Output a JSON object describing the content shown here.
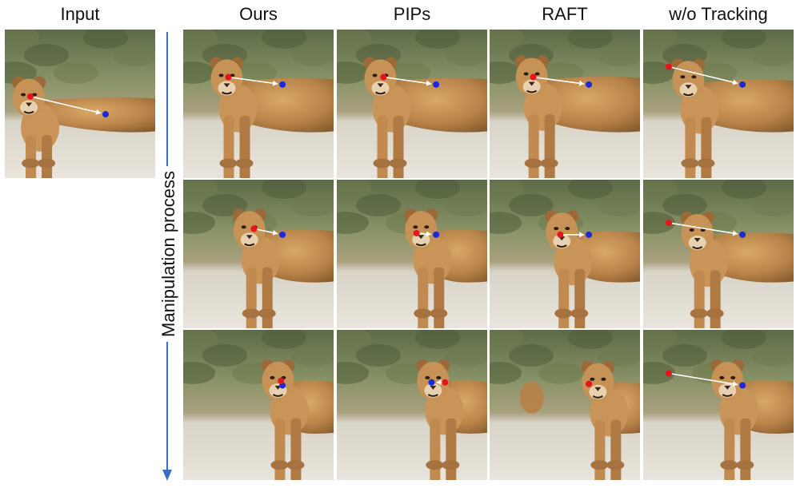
{
  "columns": [
    "Input",
    "Ours",
    "PIPs",
    "RAFT",
    "w/o Tracking"
  ],
  "axis_label": "Manipulation process",
  "colors": {
    "handle_point": "#e8141c",
    "target_point": "#1a2ad8",
    "drag_arrow": "#ffffff",
    "process_arrow": "#3a6fc4"
  },
  "panels": [
    {
      "row": 0,
      "col": 0,
      "method": "Input",
      "step": 0,
      "head": [
        0.16,
        0.46
      ],
      "handle": [
        0.17,
        0.45
      ],
      "target": [
        0.67,
        0.57
      ]
    },
    {
      "row": 0,
      "col": 1,
      "method": "Ours",
      "step": 1,
      "head": [
        0.29,
        0.33
      ],
      "handle": [
        0.3,
        0.32
      ],
      "target": [
        0.66,
        0.37
      ]
    },
    {
      "row": 0,
      "col": 2,
      "method": "PIPs",
      "step": 1,
      "head": [
        0.29,
        0.33
      ],
      "handle": [
        0.31,
        0.32
      ],
      "target": [
        0.66,
        0.37
      ]
    },
    {
      "row": 0,
      "col": 3,
      "method": "RAFT",
      "step": 1,
      "head": [
        0.28,
        0.32
      ],
      "handle": [
        0.29,
        0.32
      ],
      "target": [
        0.66,
        0.37
      ]
    },
    {
      "row": 0,
      "col": 4,
      "method": "w/o Tracking",
      "step": 1,
      "head": [
        0.3,
        0.34
      ],
      "handle": [
        0.17,
        0.25
      ],
      "target": [
        0.66,
        0.37
      ]
    },
    {
      "row": 1,
      "col": 1,
      "method": "Ours",
      "step": 2,
      "head": [
        0.44,
        0.34
      ],
      "handle": [
        0.47,
        0.33
      ],
      "target": [
        0.66,
        0.37
      ]
    },
    {
      "row": 1,
      "col": 2,
      "method": "PIPs",
      "step": 2,
      "head": [
        0.56,
        0.34
      ],
      "handle": [
        0.53,
        0.36
      ],
      "target": [
        0.66,
        0.37
      ]
    },
    {
      "row": 1,
      "col": 3,
      "method": "RAFT",
      "step": 2,
      "head": [
        0.48,
        0.35
      ],
      "handle": [
        0.47,
        0.37
      ],
      "target": [
        0.66,
        0.37
      ]
    },
    {
      "row": 1,
      "col": 4,
      "method": "w/o Tracking",
      "step": 2,
      "head": [
        0.36,
        0.36
      ],
      "handle": [
        0.17,
        0.29
      ],
      "target": [
        0.66,
        0.37
      ]
    },
    {
      "row": 2,
      "col": 1,
      "method": "Ours",
      "step": 3,
      "head": [
        0.63,
        0.34
      ],
      "handle": [
        0.65,
        0.34
      ],
      "target": [
        0.66,
        0.37
      ]
    },
    {
      "row": 2,
      "col": 2,
      "method": "PIPs",
      "step": 3,
      "head": [
        0.64,
        0.34
      ],
      "handle": [
        0.72,
        0.35
      ],
      "target": [
        0.63,
        0.35
      ]
    },
    {
      "row": 2,
      "col": 3,
      "method": "RAFT",
      "step": 3,
      "head": [
        0.72,
        0.35
      ],
      "handle": [
        0.66,
        0.36
      ],
      "target": [
        0.66,
        0.36
      ]
    },
    {
      "row": 2,
      "col": 4,
      "method": "w/o Tracking",
      "step": 3,
      "head": [
        0.56,
        0.34
      ],
      "handle": [
        0.17,
        0.29
      ],
      "target": [
        0.66,
        0.37
      ]
    }
  ]
}
